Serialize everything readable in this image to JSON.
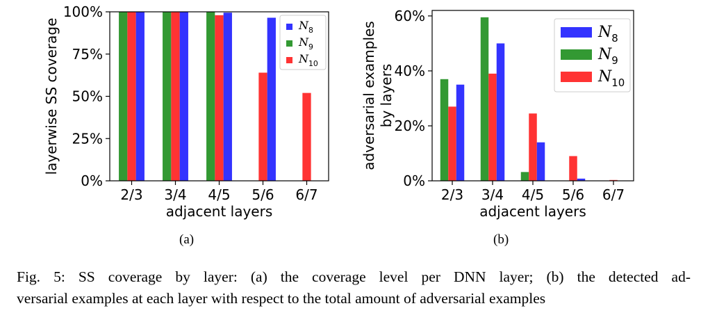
{
  "figure": {
    "subcaption_a": "(a)",
    "subcaption_b": "(b)",
    "caption_line1": "Fig. 5: SS coverage by layer: (a) the coverage level per DNN layer; (b) the detected ad-",
    "caption_line2": "versarial examples at each layer with respect to the total amount of adversarial examples"
  },
  "colors": {
    "N8": "#3333ff",
    "N9": "#339933",
    "N10": "#ff3333"
  },
  "chart_data": [
    {
      "type": "bar",
      "xlabel": "adjacent layers",
      "ylabel": "layerwise SS coverage",
      "categories": [
        "2/3",
        "3/4",
        "4/5",
        "5/6",
        "6/7"
      ],
      "ylim": [
        0,
        100
      ],
      "yticks": [
        0,
        25,
        50,
        75,
        100
      ],
      "ytick_labels": [
        "0%",
        "25%",
        "50%",
        "75%",
        "100%"
      ],
      "grid": false,
      "legend_position": "top-right",
      "series": [
        {
          "name": "N9",
          "sub": "9",
          "color": "#339933",
          "values": [
            100,
            100,
            100,
            0,
            0
          ]
        },
        {
          "name": "N10",
          "sub": "10",
          "color": "#ff3333",
          "values": [
            100,
            100,
            98,
            64,
            52
          ]
        },
        {
          "name": "N8",
          "sub": "8",
          "color": "#3333ff",
          "values": [
            100,
            100,
            99.5,
            96.5,
            0
          ]
        }
      ],
      "legend_order": [
        "N8",
        "N9",
        "N10"
      ]
    },
    {
      "type": "bar",
      "xlabel": "adjacent layers",
      "ylabel_lines": [
        "adversarial examples",
        "by layers"
      ],
      "categories": [
        "2/3",
        "3/4",
        "4/5",
        "5/6",
        "6/7"
      ],
      "ylim": [
        0,
        62
      ],
      "yticks": [
        0,
        20,
        40,
        60
      ],
      "ytick_labels": [
        "0%",
        "20%",
        "40%",
        "60%"
      ],
      "grid": false,
      "legend_position": "top-right",
      "series": [
        {
          "name": "N9",
          "sub": "9",
          "color": "#339933",
          "values": [
            37,
            59.5,
            3.2,
            0,
            0
          ]
        },
        {
          "name": "N10",
          "sub": "10",
          "color": "#ff3333",
          "values": [
            27,
            39,
            24.5,
            9,
            0.3
          ]
        },
        {
          "name": "N8",
          "sub": "8",
          "color": "#3333ff",
          "values": [
            35,
            50,
            14,
            0.8,
            0
          ]
        }
      ],
      "legend_order": [
        "N8",
        "N9",
        "N10"
      ]
    }
  ]
}
